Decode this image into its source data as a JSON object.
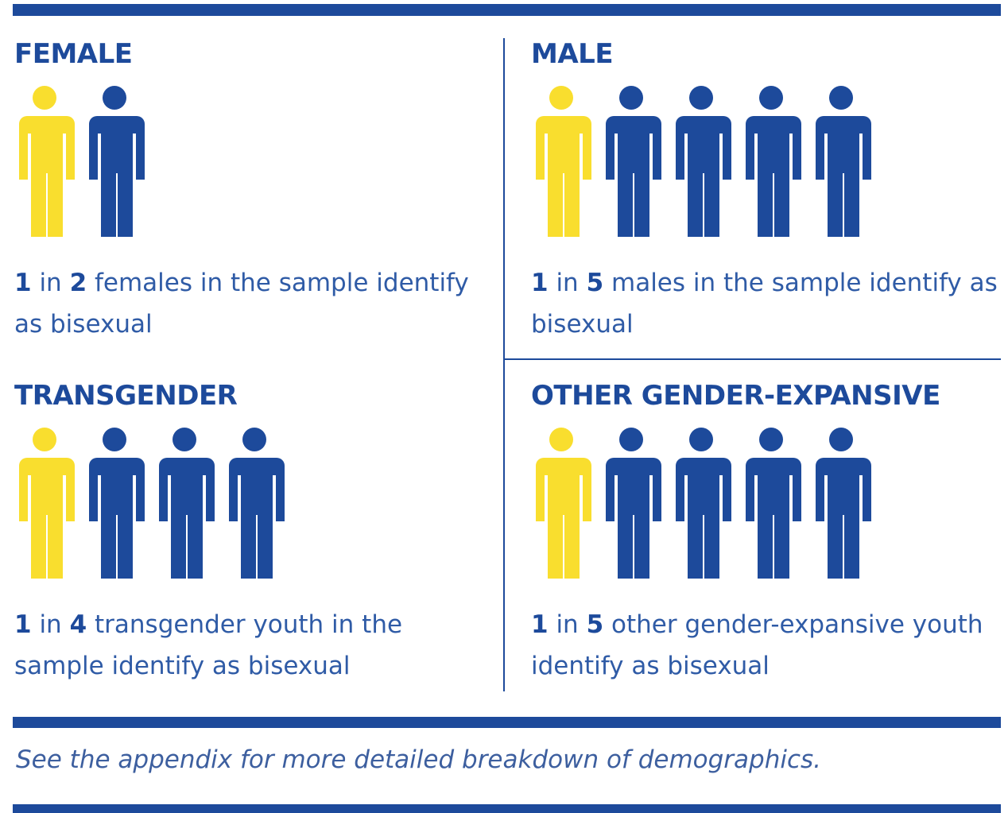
{
  "panels": [
    {
      "title": "FEMALE",
      "numerator": 1,
      "connector": "in",
      "denominator": 2,
      "text": "females in the sample identify as bisexual"
    },
    {
      "title": "MALE",
      "numerator": 1,
      "connector": "in",
      "denominator": 5,
      "text": "males in the sample identify as bisexual"
    },
    {
      "title": "TRANSGENDER",
      "numerator": 1,
      "connector": "in",
      "denominator": 4,
      "text": "transgender youth in the sample identify as bisexual"
    },
    {
      "title": "OTHER GENDER-EXPANSIVE",
      "numerator": 1,
      "connector": "in",
      "denominator": 5,
      "text": "other gender-expansive youth identify as bisexual"
    }
  ],
  "footnote": "See the appendix for more detailed breakdown of demographics."
}
